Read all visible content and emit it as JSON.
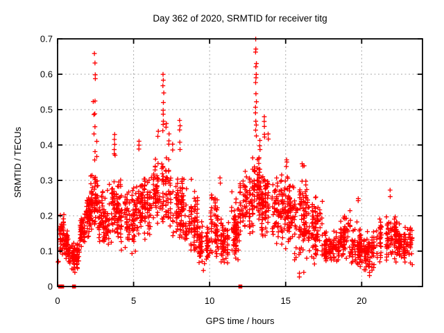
{
  "window": {
    "background": "#ffffff"
  },
  "chart_data": {
    "type": "scatter",
    "title": "Day 362 of 2020, SRMTID for receiver titg",
    "xlabel": "GPS time / hours",
    "ylabel": "SRMTID / TECUs",
    "xlim": [
      0,
      24
    ],
    "ylim": [
      0,
      0.7
    ],
    "xticks": [
      {
        "v": 0,
        "label": "0"
      },
      {
        "v": 5,
        "label": "5"
      },
      {
        "v": 10,
        "label": "10"
      },
      {
        "v": 15,
        "label": "15"
      },
      {
        "v": 20,
        "label": "20"
      }
    ],
    "yticks": [
      {
        "v": 0.0,
        "label": "0"
      },
      {
        "v": 0.1,
        "label": "0.1"
      },
      {
        "v": 0.2,
        "label": "0.2"
      },
      {
        "v": 0.3,
        "label": "0.3"
      },
      {
        "v": 0.4,
        "label": "0.4"
      },
      {
        "v": 0.5,
        "label": "0.5"
      },
      {
        "v": 0.6,
        "label": "0.6"
      },
      {
        "v": 0.7,
        "label": "0.7"
      }
    ],
    "grid": true,
    "legend": "none",
    "marker": "plus",
    "marker_color": "#ff0000",
    "grid_color": "#a6a6a6",
    "border_color": "#000000",
    "seed": 7,
    "band_segments_comment": "dense scatter envelope: [t_start_h, t_end_h, y_low_TECU, y_high_TECU, n_points]",
    "band_segments": [
      [
        0.03,
        0.1,
        0.065,
        0.075,
        2
      ],
      [
        0.1,
        0.4,
        0.08,
        0.21,
        45
      ],
      [
        0.4,
        0.7,
        0.07,
        0.17,
        45
      ],
      [
        0.7,
        1.45,
        0.045,
        0.125,
        85
      ],
      [
        1.45,
        1.8,
        0.1,
        0.22,
        45
      ],
      [
        1.8,
        2.15,
        0.13,
        0.28,
        50
      ],
      [
        2.15,
        2.65,
        0.15,
        0.33,
        70
      ],
      [
        2.65,
        3.35,
        0.11,
        0.28,
        75
      ],
      [
        3.35,
        4.15,
        0.12,
        0.31,
        85
      ],
      [
        4.15,
        5.1,
        0.09,
        0.29,
        95
      ],
      [
        5.1,
        6.3,
        0.13,
        0.32,
        110
      ],
      [
        6.3,
        7.45,
        0.16,
        0.38,
        115
      ],
      [
        7.45,
        8.3,
        0.13,
        0.32,
        85
      ],
      [
        8.3,
        9.2,
        0.08,
        0.27,
        85
      ],
      [
        9.2,
        10.0,
        0.05,
        0.19,
        75
      ],
      [
        10.0,
        10.55,
        0.08,
        0.28,
        55
      ],
      [
        10.55,
        11.25,
        0.05,
        0.19,
        70
      ],
      [
        11.25,
        12.0,
        0.07,
        0.24,
        80
      ],
      [
        12.0,
        12.85,
        0.13,
        0.34,
        90
      ],
      [
        12.85,
        13.35,
        0.18,
        0.38,
        65
      ],
      [
        13.35,
        14.05,
        0.13,
        0.33,
        70
      ],
      [
        14.05,
        14.8,
        0.11,
        0.32,
        80
      ],
      [
        14.8,
        15.45,
        0.1,
        0.33,
        80
      ],
      [
        15.45,
        16.45,
        0.06,
        0.33,
        105
      ],
      [
        16.45,
        17.4,
        0.05,
        0.26,
        95
      ],
      [
        17.4,
        18.55,
        0.06,
        0.16,
        100
      ],
      [
        18.55,
        19.25,
        0.06,
        0.21,
        70
      ],
      [
        19.25,
        20.15,
        0.05,
        0.17,
        80
      ],
      [
        20.15,
        21.05,
        0.03,
        0.16,
        85
      ],
      [
        21.05,
        22.35,
        0.06,
        0.21,
        115
      ],
      [
        22.35,
        23.35,
        0.06,
        0.18,
        100
      ]
    ],
    "outlier_columns_comment": "tall spike columns read off the plot: {t hours, values TECUs}",
    "outlier_columns": [
      {
        "t": 1.15,
        "values": [
          0.042
        ]
      },
      {
        "t": 2.38,
        "values": [
          0.52,
          0.485,
          0.43
        ]
      },
      {
        "t": 2.45,
        "values": [
          0.66,
          0.632,
          0.6,
          0.585,
          0.527,
          0.49,
          0.452,
          0.38,
          0.355
        ]
      },
      {
        "t": 2.55,
        "values": [
          0.41,
          0.37
        ]
      },
      {
        "t": 3.75,
        "values": [
          0.43,
          0.415,
          0.4,
          0.39,
          0.375,
          0.37
        ]
      },
      {
        "t": 5.35,
        "values": [
          0.41,
          0.4,
          0.39
        ]
      },
      {
        "t": 6.6,
        "values": [
          0.44,
          0.425
        ]
      },
      {
        "t": 6.95,
        "values": [
          0.6,
          0.585,
          0.565,
          0.545,
          0.52,
          0.5,
          0.485,
          0.47,
          0.455,
          0.44
        ]
      },
      {
        "t": 7.15,
        "values": [
          0.46,
          0.45
        ]
      },
      {
        "t": 7.3,
        "values": [
          0.43,
          0.41,
          0.4
        ]
      },
      {
        "t": 7.6,
        "values": [
          0.4,
          0.385
        ]
      },
      {
        "t": 8.05,
        "values": [
          0.47,
          0.455,
          0.44,
          0.41,
          0.385
        ]
      },
      {
        "t": 9.6,
        "values": [
          0.045
        ]
      },
      {
        "t": 10.7,
        "values": [
          0.305,
          0.295
        ]
      },
      {
        "t": 13.05,
        "values": [
          0.7,
          0.67,
          0.663,
          0.632,
          0.624,
          0.6,
          0.59,
          0.575,
          0.545,
          0.525,
          0.505,
          0.49,
          0.47,
          0.455,
          0.44,
          0.425
        ]
      },
      {
        "t": 13.3,
        "values": [
          0.41,
          0.4,
          0.39
        ]
      },
      {
        "t": 13.6,
        "values": [
          0.48,
          0.465,
          0.45,
          0.432,
          0.42
        ]
      },
      {
        "t": 13.85,
        "values": [
          0.43,
          0.415
        ]
      },
      {
        "t": 15.05,
        "values": [
          0.36,
          0.35,
          0.34
        ]
      },
      {
        "t": 15.9,
        "values": [
          0.035,
          0.025
        ]
      },
      {
        "t": 16.1,
        "values": [
          0.35,
          0.34
        ]
      },
      {
        "t": 16.2,
        "values": [
          0.04
        ]
      },
      {
        "t": 19.8,
        "values": [
          0.25,
          0.24
        ]
      },
      {
        "t": 20.5,
        "values": [
          0.03,
          0.04
        ]
      },
      {
        "t": 21.9,
        "values": [
          0.27,
          0.255
        ]
      }
    ],
    "zero_markers_comment": "filled red squares sitting on y=0 axis, at t hours",
    "zero_markers": [
      0.17,
      0.3,
      1.08,
      12.02
    ]
  }
}
